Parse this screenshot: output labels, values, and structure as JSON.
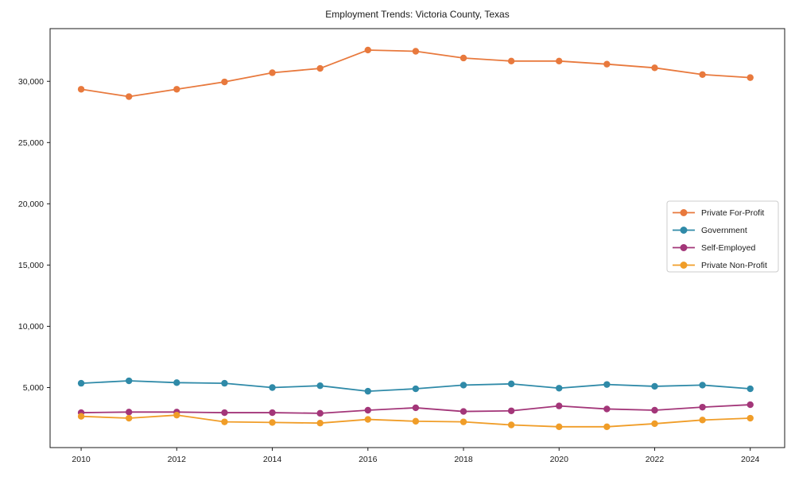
{
  "title": "Employment Trends: Victoria County, Texas",
  "chart_data": {
    "type": "line",
    "title": "Employment Trends: Victoria County, Texas",
    "xlabel": "",
    "ylabel": "",
    "x": [
      2010,
      2011,
      2012,
      2013,
      2014,
      2015,
      2016,
      2017,
      2018,
      2019,
      2020,
      2021,
      2022,
      2023,
      2024
    ],
    "series": [
      {
        "name": "Private For-Profit",
        "color": "#e8793d",
        "values": [
          29350,
          28750,
          29350,
          29950,
          30700,
          31050,
          32550,
          32450,
          31900,
          31650,
          31650,
          31400,
          31100,
          30550,
          30300
        ]
      },
      {
        "name": "Government",
        "color": "#2f8aa8",
        "values": [
          5350,
          5550,
          5400,
          5350,
          5000,
          5150,
          4700,
          4900,
          5200,
          5300,
          4950,
          5250,
          5100,
          5200,
          4900
        ]
      },
      {
        "name": "Self-Employed",
        "color": "#a33679",
        "values": [
          2950,
          3000,
          3000,
          2950,
          2950,
          2900,
          3150,
          3350,
          3050,
          3100,
          3500,
          3250,
          3150,
          3400,
          3600
        ]
      },
      {
        "name": "Private Non-Profit",
        "color": "#f09d28",
        "values": [
          2650,
          2500,
          2750,
          2200,
          2150,
          2100,
          2400,
          2250,
          2200,
          1950,
          1800,
          1800,
          2050,
          2350,
          2500
        ]
      }
    ],
    "xlim": [
      2009.35,
      2024.72
    ],
    "ylim": [
      100,
      34300
    ],
    "xticks": {
      "values": [
        2010,
        2012,
        2014,
        2016,
        2018,
        2020,
        2022,
        2024
      ],
      "labels": [
        "2010",
        "2012",
        "2014",
        "2016",
        "2018",
        "2020",
        "2022",
        "2024"
      ]
    },
    "yticks": {
      "values": [
        5000,
        10000,
        15000,
        20000,
        25000,
        30000
      ],
      "labels": [
        "5,000",
        "10,000",
        "15,000",
        "20,000",
        "25,000",
        "30,000"
      ]
    },
    "grid": false,
    "legend_position": "center right",
    "marker": "circle"
  }
}
